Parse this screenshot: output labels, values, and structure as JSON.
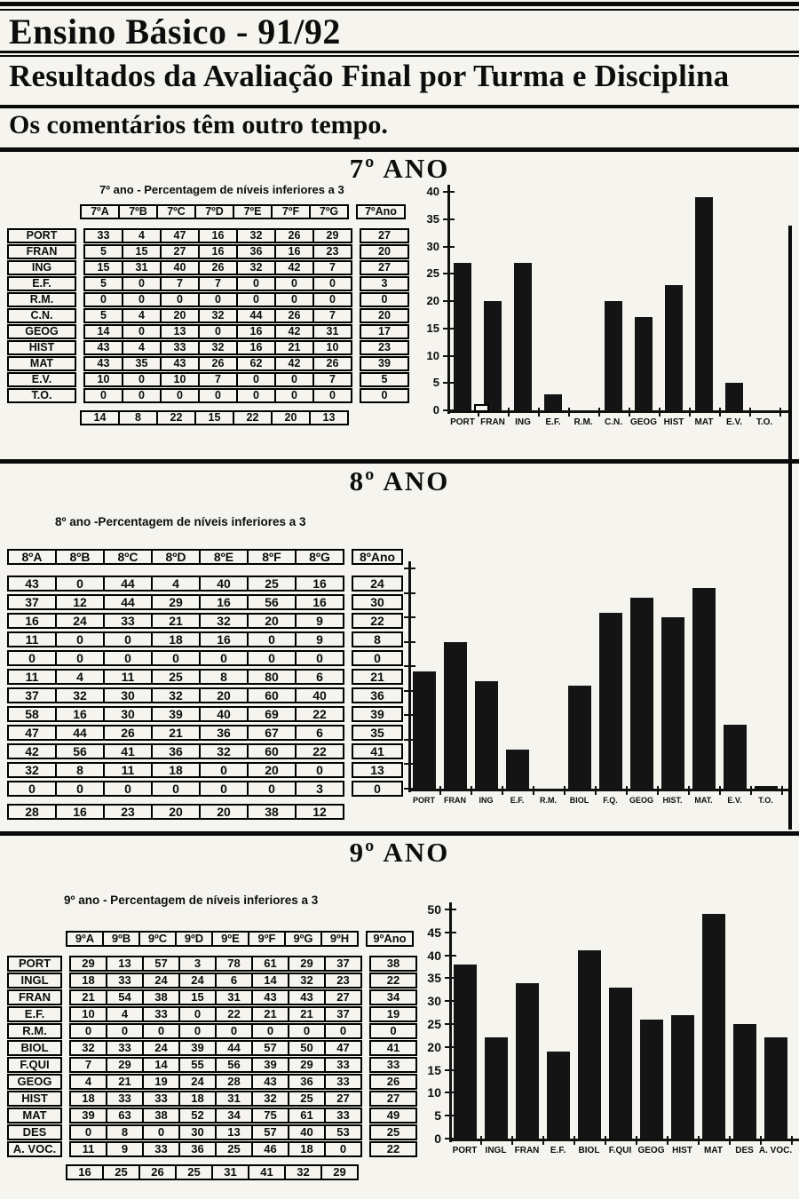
{
  "page": {
    "title": "Ensino Básico - 91/92",
    "subtitle": "Resultados da Avaliação Final por Turma e Disciplina",
    "note": "Os comentários têm outro tempo."
  },
  "sections": [
    {
      "heading": "7º ANO",
      "table_title": "7º ano - Percentagem de níveis inferiores a 3",
      "table": {
        "col_header": [
          "7ºA",
          "7ºB",
          "7ºC",
          "7ºD",
          "7ºE",
          "7ºF",
          "7ºG"
        ],
        "total_header": "7ºAno",
        "row_labels": [
          "PORT",
          "FRAN",
          "ING",
          "E.F.",
          "R.M.",
          "C.N.",
          "GEOG",
          "HIST",
          "MAT",
          "E.V.",
          "T.O."
        ],
        "rows": [
          [
            33,
            4,
            47,
            16,
            32,
            26,
            29
          ],
          [
            5,
            15,
            27,
            16,
            36,
            16,
            23
          ],
          [
            15,
            31,
            40,
            26,
            32,
            42,
            7
          ],
          [
            5,
            0,
            7,
            7,
            0,
            0,
            0
          ],
          [
            0,
            0,
            0,
            0,
            0,
            0,
            0
          ],
          [
            5,
            4,
            20,
            32,
            44,
            26,
            7
          ],
          [
            14,
            0,
            13,
            0,
            16,
            42,
            31
          ],
          [
            43,
            4,
            33,
            32,
            16,
            21,
            10
          ],
          [
            43,
            35,
            43,
            26,
            62,
            42,
            26
          ],
          [
            10,
            0,
            10,
            7,
            0,
            0,
            7
          ],
          [
            0,
            0,
            0,
            0,
            0,
            0,
            0
          ]
        ],
        "totals": [
          27,
          20,
          27,
          3,
          0,
          20,
          17,
          23,
          39,
          5,
          0
        ],
        "footer": [
          14,
          8,
          22,
          15,
          22,
          20,
          13
        ]
      }
    },
    {
      "heading": "8º ANO",
      "table_title": "8º ano -Percentagem de níveis inferiores a 3",
      "table": {
        "col_header": [
          "8ºA",
          "8ºB",
          "8ºC",
          "8ºD",
          "8ºE",
          "8ºF",
          "8ºG"
        ],
        "total_header": "8ºAno",
        "row_labels": null,
        "rows": [
          [
            43,
            0,
            44,
            4,
            40,
            25,
            16
          ],
          [
            37,
            12,
            44,
            29,
            16,
            56,
            16
          ],
          [
            16,
            24,
            33,
            21,
            32,
            20,
            9
          ],
          [
            11,
            0,
            0,
            18,
            16,
            0,
            9
          ],
          [
            0,
            0,
            0,
            0,
            0,
            0,
            0
          ],
          [
            11,
            4,
            11,
            25,
            8,
            80,
            6
          ],
          [
            37,
            32,
            30,
            32,
            20,
            60,
            40
          ],
          [
            58,
            16,
            30,
            39,
            40,
            69,
            22
          ],
          [
            47,
            44,
            26,
            21,
            36,
            67,
            6
          ],
          [
            42,
            56,
            41,
            36,
            32,
            60,
            22
          ],
          [
            32,
            8,
            11,
            18,
            0,
            20,
            0
          ],
          [
            0,
            0,
            0,
            0,
            0,
            0,
            3
          ]
        ],
        "totals": [
          24,
          30,
          22,
          8,
          0,
          21,
          36,
          39,
          35,
          41,
          13,
          0
        ],
        "footer": [
          28,
          16,
          23,
          20,
          20,
          38,
          12
        ]
      }
    },
    {
      "heading": "9º ANO",
      "table_title": "9º ano - Percentagem de níveis inferiores a 3",
      "table": {
        "col_header": [
          "9ºA",
          "9ºB",
          "9ºC",
          "9ºD",
          "9ºE",
          "9ºF",
          "9ºG",
          "9ºH"
        ],
        "total_header": "9ºAno",
        "row_labels": [
          "PORT",
          "INGL",
          "FRAN",
          "E.F.",
          "R.M.",
          "BIOL",
          "F.QUI",
          "GEOG",
          "HIST",
          "MAT",
          "DES",
          "A. VOC."
        ],
        "rows": [
          [
            29,
            13,
            57,
            3,
            78,
            61,
            29,
            37
          ],
          [
            18,
            33,
            24,
            24,
            6,
            14,
            32,
            23
          ],
          [
            21,
            54,
            38,
            15,
            31,
            43,
            43,
            27
          ],
          [
            10,
            4,
            33,
            0,
            22,
            21,
            21,
            37
          ],
          [
            0,
            0,
            0,
            0,
            0,
            0,
            0,
            0
          ],
          [
            32,
            33,
            24,
            39,
            44,
            57,
            50,
            47
          ],
          [
            7,
            29,
            14,
            55,
            56,
            39,
            29,
            33
          ],
          [
            4,
            21,
            19,
            24,
            28,
            43,
            36,
            33
          ],
          [
            18,
            33,
            33,
            18,
            31,
            32,
            25,
            27
          ],
          [
            39,
            63,
            38,
            52,
            34,
            75,
            61,
            33
          ],
          [
            0,
            8,
            0,
            30,
            13,
            57,
            40,
            53
          ],
          [
            11,
            9,
            33,
            36,
            25,
            46,
            18,
            0
          ]
        ],
        "totals": [
          38,
          22,
          34,
          19,
          0,
          41,
          33,
          26,
          27,
          49,
          25,
          22
        ],
        "footer": [
          16,
          25,
          26,
          25,
          31,
          41,
          32,
          29
        ]
      }
    }
  ],
  "chart_data": [
    {
      "type": "bar",
      "title": "7º ano - Percentagem de níveis inferiores a 3",
      "categories": [
        "PORT",
        "FRAN",
        "ING",
        "E.F.",
        "R.M.",
        "C.N.",
        "GEOG",
        "HIST",
        "MAT",
        "E.V.",
        "T.O."
      ],
      "values": [
        27,
        20,
        27,
        3,
        0,
        20,
        17,
        23,
        39,
        5,
        0
      ],
      "ylim": [
        0,
        40
      ],
      "ytick_step": 5,
      "ytick_labels_visible": true,
      "grid": false,
      "legend": false,
      "bar_color": "#141414",
      "hollow_mini_bar": {
        "after_category": "PORT",
        "value": 1
      }
    },
    {
      "type": "bar",
      "title": "8º ano -Percentagem de níveis inferiores a 3",
      "categories": [
        "PORT",
        "FRAN",
        "ING",
        "E.F.",
        "R.M.",
        "BIOL",
        "F.Q.",
        "GEOG",
        "HIST.",
        "MAT.",
        "E.V.",
        "T.O."
      ],
      "values": [
        24,
        30,
        22,
        8,
        0,
        21,
        36,
        39,
        35,
        41,
        13,
        0
      ],
      "ylim": [
        0,
        45
      ],
      "ytick_step": 5,
      "ytick_labels_visible": false,
      "grid": false,
      "legend": false,
      "bar_color": "#141414",
      "artifact_bar": {
        "category": "T.O.",
        "approx_value": 0.5
      }
    },
    {
      "type": "bar",
      "title": "9º ano - Percentagem de níveis inferiores a 3",
      "categories": [
        "PORT",
        "INGL",
        "FRAN",
        "E.F.",
        "BIOL",
        "F.QUI",
        "GEOG",
        "HIST",
        "MAT",
        "DES",
        "A. VOC."
      ],
      "values": [
        38,
        22,
        34,
        19,
        41,
        33,
        26,
        27,
        49,
        25,
        22
      ],
      "ylim": [
        0,
        50
      ],
      "ytick_step": 5,
      "ytick_labels_visible": true,
      "grid": false,
      "legend": false,
      "bar_color": "#141414"
    }
  ]
}
